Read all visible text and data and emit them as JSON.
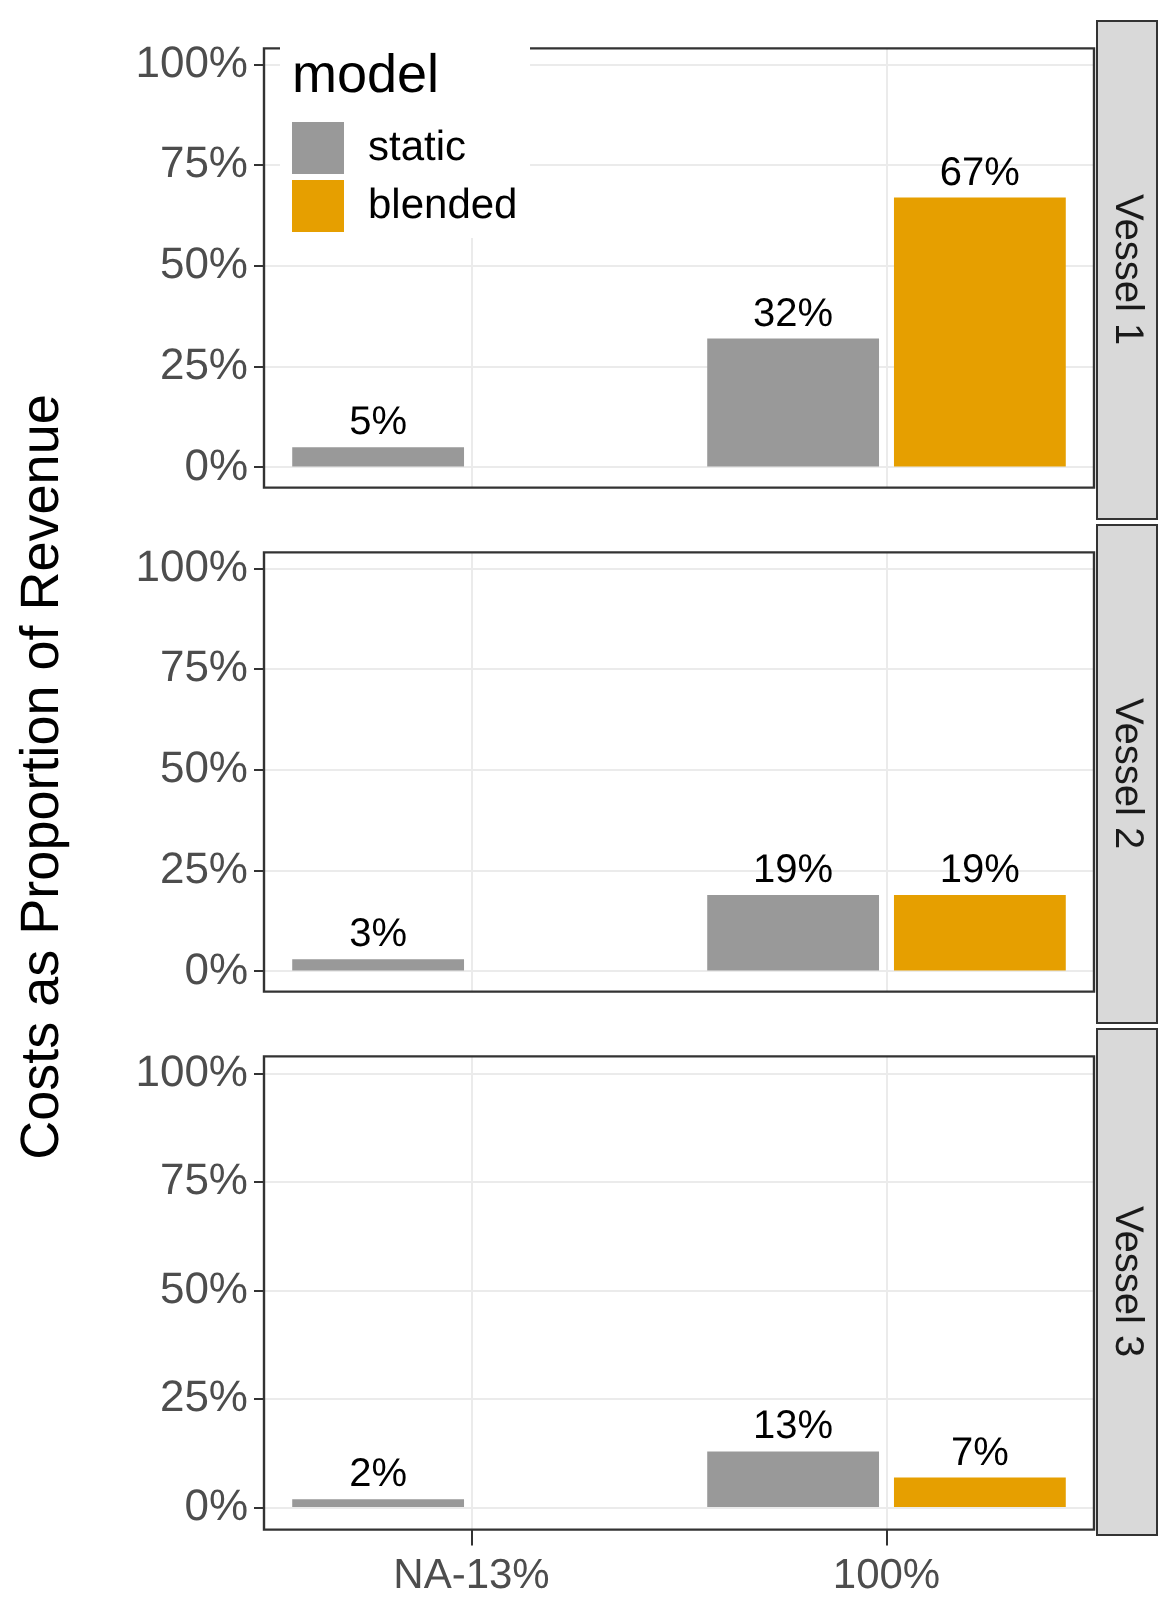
{
  "chart_data": [
    {
      "type": "bar",
      "title": "Vessel 1",
      "ylabel": "Costs as Proportion of Revenue",
      "legend_title": "model",
      "legend": "top left",
      "grid": true,
      "tick_labels": "y",
      "categories": [
        null,
        null
      ],
      "ylim": [
        -5,
        104
      ],
      "yticks": [
        {
          "value": 0,
          "label": "0%"
        },
        {
          "value": 25,
          "label": "25%"
        },
        {
          "value": 50,
          "label": "50%"
        },
        {
          "value": 75,
          "label": "75%"
        },
        {
          "value": 100,
          "label": "100%"
        }
      ],
      "series": [
        {
          "name": "static",
          "color": "#999999",
          "values": [
            5,
            32
          ],
          "value_labels": [
            "5%",
            "32%"
          ]
        },
        {
          "name": "blended",
          "color": "#e69f00",
          "values": [
            null,
            67
          ],
          "value_labels": [
            null,
            "67%"
          ]
        }
      ]
    },
    {
      "type": "bar",
      "title": "Vessel 2",
      "grid": true,
      "tick_labels": "y",
      "categories": [
        null,
        null
      ],
      "ylim": [
        -5,
        104
      ],
      "yticks": [
        {
          "value": 0,
          "label": "0%"
        },
        {
          "value": 25,
          "label": "25%"
        },
        {
          "value": 50,
          "label": "50%"
        },
        {
          "value": 75,
          "label": "75%"
        },
        {
          "value": 100,
          "label": "100%"
        }
      ],
      "series": [
        {
          "color": "#999999",
          "values": [
            3,
            19
          ],
          "value_labels": [
            "3%",
            "19%"
          ]
        },
        {
          "color": "#e69f00",
          "values": [
            null,
            19
          ],
          "value_labels": [
            null,
            "19%"
          ]
        }
      ]
    },
    {
      "type": "bar",
      "title": "Vessel 3",
      "grid": true,
      "categories": [
        "NA-13%",
        "100%"
      ],
      "ylim": [
        -5,
        104
      ],
      "yticks": [
        {
          "value": 0,
          "label": "0%"
        },
        {
          "value": 25,
          "label": "25%"
        },
        {
          "value": 50,
          "label": "50%"
        },
        {
          "value": 75,
          "label": "75%"
        },
        {
          "value": 100,
          "label": "100%"
        }
      ],
      "series": [
        {
          "color": "#999999",
          "values": [
            2,
            13
          ],
          "value_labels": [
            "2%",
            "13%"
          ]
        },
        {
          "color": "#e69f00",
          "values": [
            null,
            7
          ],
          "value_labels": [
            null,
            "7%"
          ]
        }
      ]
    }
  ]
}
